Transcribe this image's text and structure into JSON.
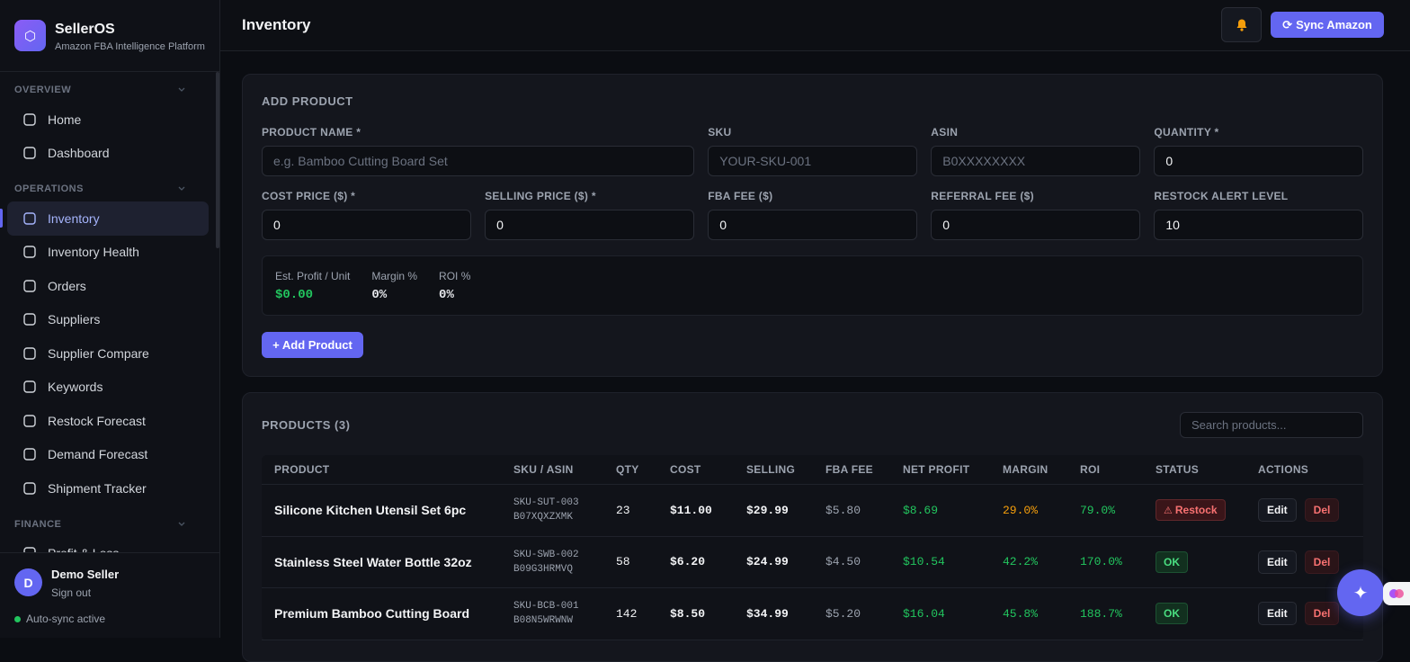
{
  "sidebar": {
    "brand": "SellerOS",
    "tagline": "Amazon FBA Intelligence Platform",
    "sections": [
      {
        "title": "OVERVIEW",
        "items": [
          "Home",
          "Dashboard"
        ]
      },
      {
        "title": "OPERATIONS",
        "items": [
          "Inventory",
          "Inventory Health",
          "Orders",
          "Suppliers",
          "Supplier Compare",
          "Keywords",
          "Restock Forecast",
          "Demand Forecast",
          "Shipment Tracker"
        ]
      },
      {
        "title": "FINANCE",
        "items": [
          "Profit & Loss"
        ]
      }
    ],
    "active": "Inventory",
    "user": {
      "avatar": "D",
      "name": "Demo Seller",
      "signout": "Sign out"
    },
    "sync_status": "Auto-sync active"
  },
  "header": {
    "title": "Inventory",
    "sync_button": "Sync Amazon"
  },
  "add_product": {
    "title": "ADD PRODUCT",
    "fields": [
      {
        "label": "PRODUCT NAME *",
        "placeholder": "e.g. Bamboo Cutting Board Set"
      },
      {
        "label": "SKU",
        "placeholder": "YOUR-SKU-001"
      },
      {
        "label": "ASIN",
        "placeholder": "B0XXXXXXXX"
      },
      {
        "label": "QUANTITY *",
        "value": "0"
      },
      {
        "label": "COST PRICE ($) *",
        "value": "0"
      },
      {
        "label": "SELLING PRICE ($) *",
        "value": "0"
      },
      {
        "label": "FBA FEE ($)",
        "value": "0"
      },
      {
        "label": "REFERRAL FEE ($)",
        "value": "0"
      },
      {
        "label": "RESTOCK ALERT LEVEL",
        "value": "10"
      }
    ],
    "summary": [
      {
        "label": "Est. Profit / Unit",
        "value": "$0.00",
        "color": "#22c55e"
      },
      {
        "label": "Margin %",
        "value": "0%",
        "color": "#e5e7eb"
      },
      {
        "label": "ROI %",
        "value": "0%",
        "color": "#e5e7eb"
      }
    ],
    "button": "+ Add Product"
  },
  "products": {
    "title": "PRODUCTS (3)",
    "search_placeholder": "Search products...",
    "columns": [
      "PRODUCT",
      "SKU / ASIN",
      "QTY",
      "COST",
      "SELLING",
      "FBA FEE",
      "NET PROFIT",
      "MARGIN",
      "ROI",
      "STATUS",
      "ACTIONS"
    ],
    "actions": [
      "Edit",
      "Del"
    ],
    "rows": [
      {
        "product": "Silicone Kitchen Utensil Set 6pc",
        "sku": "SKU-SUT-003",
        "asin": "B07XQXZXMK",
        "qty": "23",
        "cost": "$11.00",
        "selling": "$29.99",
        "fba_fee": "$5.80",
        "net_profit": "$8.69",
        "margin": "29.0%",
        "margin_color": "#f59e0b",
        "roi": "79.0%",
        "status": "Restock",
        "status_color": "#f87171",
        "status_bg": "#3a1519"
      },
      {
        "product": "Stainless Steel Water Bottle 32oz",
        "sku": "SKU-SWB-002",
        "asin": "B09G3HRMVQ",
        "qty": "58",
        "cost": "$6.20",
        "selling": "$24.99",
        "fba_fee": "$4.50",
        "net_profit": "$10.54",
        "margin": "42.2%",
        "margin_color": "#22c55e",
        "roi": "170.0%",
        "status": "OK",
        "status_color": "#4ade80",
        "status_bg": "#12301f"
      },
      {
        "product": "Premium Bamboo Cutting Board",
        "sku": "SKU-BCB-001",
        "asin": "B08N5WRWNW",
        "qty": "142",
        "cost": "$8.50",
        "selling": "$34.99",
        "fba_fee": "$5.20",
        "net_profit": "$16.04",
        "margin": "45.8%",
        "margin_color": "#22c55e",
        "roi": "188.7%",
        "status": "OK",
        "status_color": "#4ade80",
        "status_bg": "#12301f"
      }
    ]
  }
}
